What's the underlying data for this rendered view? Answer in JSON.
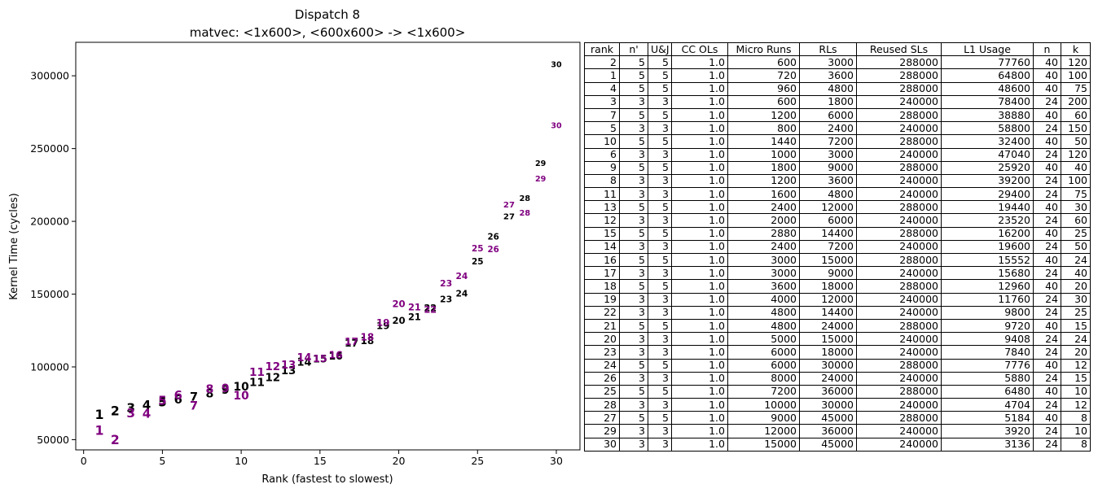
{
  "chart_data": {
    "type": "scatter",
    "title": "Dispatch 8",
    "subtitle": "matvec: <1x600>, <600x600> -> <1x600>",
    "xlabel": "Rank (fastest to slowest)",
    "ylabel": "Kernel Time (cycles)",
    "xlim": [
      -0.5,
      31.5
    ],
    "ylim": [
      43000,
      323000
    ],
    "xticks": [
      0,
      5,
      10,
      15,
      20,
      25,
      30
    ],
    "yticks": [
      50000,
      100000,
      150000,
      200000,
      250000,
      300000
    ],
    "grid": false,
    "series": [
      {
        "color": "#000000",
        "points": [
          {
            "x": 1,
            "y": 67500,
            "label": "1"
          },
          {
            "x": 2,
            "y": 69800,
            "label": "2"
          },
          {
            "x": 3,
            "y": 72000,
            "label": "3"
          },
          {
            "x": 4,
            "y": 74000,
            "label": "4"
          },
          {
            "x": 5,
            "y": 76000,
            "label": "5"
          },
          {
            "x": 6,
            "y": 77800,
            "label": "6"
          },
          {
            "x": 7,
            "y": 79800,
            "label": "7"
          },
          {
            "x": 8,
            "y": 81800,
            "label": "8"
          },
          {
            "x": 9,
            "y": 84500,
            "label": "9"
          },
          {
            "x": 10,
            "y": 86500,
            "label": "10"
          },
          {
            "x": 11,
            "y": 89500,
            "label": "11"
          },
          {
            "x": 12,
            "y": 93000,
            "label": "12"
          },
          {
            "x": 13,
            "y": 97500,
            "label": "13"
          },
          {
            "x": 14,
            "y": 103500,
            "label": "14"
          },
          {
            "x": 15,
            "y": 105500,
            "label": "15"
          },
          {
            "x": 16,
            "y": 107500,
            "label": "16"
          },
          {
            "x": 17,
            "y": 116500,
            "label": "17"
          },
          {
            "x": 18,
            "y": 118000,
            "label": "18"
          },
          {
            "x": 19,
            "y": 128500,
            "label": "19"
          },
          {
            "x": 20,
            "y": 132000,
            "label": "20"
          },
          {
            "x": 21,
            "y": 134500,
            "label": "21"
          },
          {
            "x": 22,
            "y": 140500,
            "label": "22"
          },
          {
            "x": 23,
            "y": 146500,
            "label": "23"
          },
          {
            "x": 24,
            "y": 150500,
            "label": "24"
          },
          {
            "x": 25,
            "y": 172500,
            "label": "25"
          },
          {
            "x": 26,
            "y": 189500,
            "label": "26"
          },
          {
            "x": 27,
            "y": 203500,
            "label": "27"
          },
          {
            "x": 28,
            "y": 216000,
            "label": "28"
          },
          {
            "x": 29,
            "y": 240000,
            "label": "29"
          },
          {
            "x": 30,
            "y": 308000,
            "label": "30"
          }
        ]
      },
      {
        "color": "#800080",
        "points": [
          {
            "x": 1,
            "y": 56500,
            "label": "1"
          },
          {
            "x": 2,
            "y": 50000,
            "label": "2"
          },
          {
            "x": 3,
            "y": 68500,
            "label": "3"
          },
          {
            "x": 4,
            "y": 68000,
            "label": "4"
          },
          {
            "x": 5,
            "y": 77000,
            "label": "5"
          },
          {
            "x": 6,
            "y": 80500,
            "label": "6"
          },
          {
            "x": 7,
            "y": 73500,
            "label": "7"
          },
          {
            "x": 8,
            "y": 85000,
            "label": "8"
          },
          {
            "x": 9,
            "y": 85500,
            "label": "9"
          },
          {
            "x": 10,
            "y": 80500,
            "label": "10"
          },
          {
            "x": 11,
            "y": 96500,
            "label": "11"
          },
          {
            "x": 12,
            "y": 100500,
            "label": "12"
          },
          {
            "x": 13,
            "y": 101500,
            "label": "13"
          },
          {
            "x": 14,
            "y": 106500,
            "label": "14"
          },
          {
            "x": 15,
            "y": 106000,
            "label": "15"
          },
          {
            "x": 16,
            "y": 108500,
            "label": "16"
          },
          {
            "x": 17,
            "y": 117500,
            "label": "17"
          },
          {
            "x": 18,
            "y": 120500,
            "label": "18"
          },
          {
            "x": 19,
            "y": 130500,
            "label": "19"
          },
          {
            "x": 20,
            "y": 143500,
            "label": "20"
          },
          {
            "x": 21,
            "y": 141000,
            "label": "21"
          },
          {
            "x": 22,
            "y": 139500,
            "label": "22"
          },
          {
            "x": 23,
            "y": 157500,
            "label": "23"
          },
          {
            "x": 24,
            "y": 162500,
            "label": "24"
          },
          {
            "x": 25,
            "y": 181500,
            "label": "25"
          },
          {
            "x": 26,
            "y": 181000,
            "label": "26"
          },
          {
            "x": 27,
            "y": 211500,
            "label": "27"
          },
          {
            "x": 28,
            "y": 206000,
            "label": "28"
          },
          {
            "x": 29,
            "y": 229500,
            "label": "29"
          },
          {
            "x": 30,
            "y": 266000,
            "label": "30"
          }
        ]
      }
    ]
  },
  "table": {
    "columns": [
      "rank",
      "n'",
      "U&J",
      "CC OLs",
      "Micro Runs",
      "RLs",
      "Reused SLs",
      "L1 Usage",
      "n",
      "k"
    ],
    "rows": [
      [
        "2",
        "5",
        "5",
        "1.0",
        "600",
        "3000",
        "288000",
        "77760",
        "40",
        "120"
      ],
      [
        "1",
        "5",
        "5",
        "1.0",
        "720",
        "3600",
        "288000",
        "64800",
        "40",
        "100"
      ],
      [
        "4",
        "5",
        "5",
        "1.0",
        "960",
        "4800",
        "288000",
        "48600",
        "40",
        "75"
      ],
      [
        "3",
        "3",
        "3",
        "1.0",
        "600",
        "1800",
        "240000",
        "78400",
        "24",
        "200"
      ],
      [
        "7",
        "5",
        "5",
        "1.0",
        "1200",
        "6000",
        "288000",
        "38880",
        "40",
        "60"
      ],
      [
        "5",
        "3",
        "3",
        "1.0",
        "800",
        "2400",
        "240000",
        "58800",
        "24",
        "150"
      ],
      [
        "10",
        "5",
        "5",
        "1.0",
        "1440",
        "7200",
        "288000",
        "32400",
        "40",
        "50"
      ],
      [
        "6",
        "3",
        "3",
        "1.0",
        "1000",
        "3000",
        "240000",
        "47040",
        "24",
        "120"
      ],
      [
        "9",
        "5",
        "5",
        "1.0",
        "1800",
        "9000",
        "288000",
        "25920",
        "40",
        "40"
      ],
      [
        "8",
        "3",
        "3",
        "1.0",
        "1200",
        "3600",
        "240000",
        "39200",
        "24",
        "100"
      ],
      [
        "11",
        "3",
        "3",
        "1.0",
        "1600",
        "4800",
        "240000",
        "29400",
        "24",
        "75"
      ],
      [
        "13",
        "5",
        "5",
        "1.0",
        "2400",
        "12000",
        "288000",
        "19440",
        "40",
        "30"
      ],
      [
        "12",
        "3",
        "3",
        "1.0",
        "2000",
        "6000",
        "240000",
        "23520",
        "24",
        "60"
      ],
      [
        "15",
        "5",
        "5",
        "1.0",
        "2880",
        "14400",
        "288000",
        "16200",
        "40",
        "25"
      ],
      [
        "14",
        "3",
        "3",
        "1.0",
        "2400",
        "7200",
        "240000",
        "19600",
        "24",
        "50"
      ],
      [
        "16",
        "5",
        "5",
        "1.0",
        "3000",
        "15000",
        "288000",
        "15552",
        "40",
        "24"
      ],
      [
        "17",
        "3",
        "3",
        "1.0",
        "3000",
        "9000",
        "240000",
        "15680",
        "24",
        "40"
      ],
      [
        "18",
        "5",
        "5",
        "1.0",
        "3600",
        "18000",
        "288000",
        "12960",
        "40",
        "20"
      ],
      [
        "19",
        "3",
        "3",
        "1.0",
        "4000",
        "12000",
        "240000",
        "11760",
        "24",
        "30"
      ],
      [
        "22",
        "3",
        "3",
        "1.0",
        "4800",
        "14400",
        "240000",
        "9800",
        "24",
        "25"
      ],
      [
        "21",
        "5",
        "5",
        "1.0",
        "4800",
        "24000",
        "288000",
        "9720",
        "40",
        "15"
      ],
      [
        "20",
        "3",
        "3",
        "1.0",
        "5000",
        "15000",
        "240000",
        "9408",
        "24",
        "24"
      ],
      [
        "23",
        "3",
        "3",
        "1.0",
        "6000",
        "18000",
        "240000",
        "7840",
        "24",
        "20"
      ],
      [
        "24",
        "5",
        "5",
        "1.0",
        "6000",
        "30000",
        "288000",
        "7776",
        "40",
        "12"
      ],
      [
        "26",
        "3",
        "3",
        "1.0",
        "8000",
        "24000",
        "240000",
        "5880",
        "24",
        "15"
      ],
      [
        "25",
        "5",
        "5",
        "1.0",
        "7200",
        "36000",
        "288000",
        "6480",
        "40",
        "10"
      ],
      [
        "28",
        "3",
        "3",
        "1.0",
        "10000",
        "30000",
        "240000",
        "4704",
        "24",
        "12"
      ],
      [
        "27",
        "5",
        "5",
        "1.0",
        "9000",
        "45000",
        "288000",
        "5184",
        "40",
        "8"
      ],
      [
        "29",
        "3",
        "3",
        "1.0",
        "12000",
        "36000",
        "240000",
        "3920",
        "24",
        "10"
      ],
      [
        "30",
        "3",
        "3",
        "1.0",
        "15000",
        "45000",
        "240000",
        "3136",
        "24",
        "8"
      ]
    ]
  }
}
